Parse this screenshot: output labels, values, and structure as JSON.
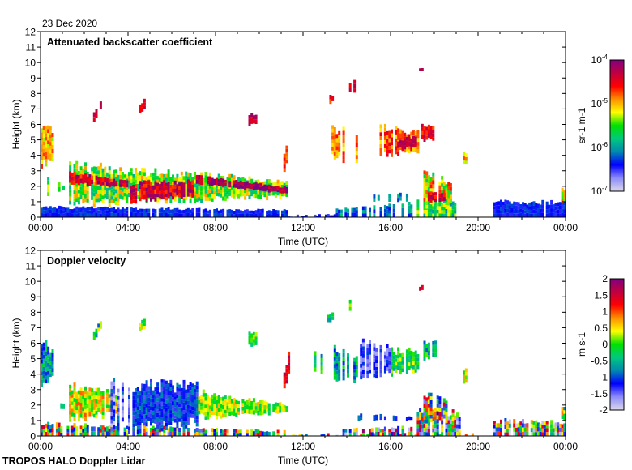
{
  "date_label": "23 Dec 2020",
  "footer": "TROPOS HALO Doppler Lidar",
  "colors": {
    "colormap": [
      "#dcd8ec",
      "#8c8cf8",
      "#0000ff",
      "#0088b0",
      "#00c880",
      "#00e000",
      "#ffff00",
      "#ff9000",
      "#ff0000",
      "#c00040",
      "#800080"
    ]
  },
  "chart_data": [
    {
      "type": "heatmap",
      "title": "Attenuated backscatter coefficient",
      "xlabel": "Time (UTC)",
      "ylabel": "Height (km)",
      "xlim": [
        0,
        24
      ],
      "ylim": [
        0,
        12
      ],
      "x_ticks": [
        0,
        4,
        8,
        12,
        16,
        20,
        24
      ],
      "x_tick_labels": [
        "00:00",
        "04:00",
        "08:00",
        "12:00",
        "16:00",
        "20:00",
        "00:00"
      ],
      "y_ticks": [
        0,
        1,
        2,
        3,
        4,
        5,
        6,
        7,
        8,
        9,
        10,
        11,
        12
      ],
      "y_tick_labels": [
        "0",
        "1",
        "2",
        "3",
        "4",
        "5",
        "6",
        "7",
        "8",
        "9",
        "10",
        "11",
        "12"
      ],
      "colorbar": {
        "scale": "log",
        "range": [
          -7,
          -4
        ],
        "unit_label": "sr-1 m-1",
        "unit_base": [
          "sr",
          "m"
        ],
        "unit_exp": [
          "-1",
          "-1"
        ],
        "tick_values": [
          -4,
          -5,
          -6,
          -7
        ],
        "tick_base": "10",
        "tick_exps": [
          "-4",
          "-5",
          "-6",
          "-7"
        ]
      },
      "features": [
        {
          "t": [
            0,
            11.3
          ],
          "b": [
            0,
            0
          ],
          "h": [
            0.65,
            0.45
          ],
          "v": -6.35,
          "s": 0.15,
          "fill": 0.95
        },
        {
          "t": [
            11.3,
            13.5
          ],
          "b": [
            0,
            0
          ],
          "h": [
            0.1,
            0.15
          ],
          "v": -6.4,
          "s": 0.2,
          "fill": 0.6
        },
        {
          "t": [
            13.5,
            17.2
          ],
          "b": [
            0,
            0
          ],
          "h": [
            0.5,
            0.9
          ],
          "v": -6.1,
          "s": 0.35,
          "fill": 0.7
        },
        {
          "t": [
            17.2,
            19.0
          ],
          "b": [
            0,
            0
          ],
          "h": [
            1.2,
            1.0
          ],
          "v": -5.6,
          "s": 0.5,
          "fill": 0.85
        },
        {
          "t": [
            20.7,
            24
          ],
          "b": [
            0,
            0
          ],
          "h": [
            1.0,
            0.95
          ],
          "v": -6.35,
          "s": 0.15,
          "fill": 0.95
        },
        {
          "t": [
            14.5,
            17.0
          ],
          "b": [
            1.0,
            1.0
          ],
          "h": [
            1.5,
            1.5
          ],
          "v": -6.0,
          "s": 0.3,
          "fill": 0.4
        },
        {
          "t": [
            0,
            0.6
          ],
          "b": [
            3.5,
            3.8
          ],
          "h": [
            6.0,
            5.5
          ],
          "v": -5.0,
          "s": 0.35,
          "fill": 0.9
        },
        {
          "t": [
            0.3,
            1.1
          ],
          "b": [
            1.5,
            1.8
          ],
          "h": [
            2.5,
            2.0
          ],
          "v": -5.5,
          "s": 0.4,
          "fill": 0.5
        },
        {
          "t": [
            1.3,
            11.3
          ],
          "b": [
            0.9,
            1.3
          ],
          "h": [
            3.3,
            2.3
          ],
          "v": -5.4,
          "s": 0.5,
          "fill": 0.95
        },
        {
          "t": [
            1.3,
            4.0
          ],
          "b": [
            2.2,
            1.9
          ],
          "h": [
            2.9,
            2.3
          ],
          "v": -4.4,
          "s": 0.4,
          "fill": 0.85
        },
        {
          "t": [
            4.0,
            7.0
          ],
          "b": [
            1.0,
            1.4
          ],
          "h": [
            2.2,
            2.3
          ],
          "v": -4.4,
          "s": 0.4,
          "fill": 0.9
        },
        {
          "t": [
            7.0,
            11.3
          ],
          "b": [
            2.2,
            1.5
          ],
          "h": [
            2.7,
            1.9
          ],
          "v": -4.2,
          "s": 0.3,
          "fill": 0.95
        },
        {
          "t": [
            17.5,
            18.8
          ],
          "b": [
            0.8,
            1.0
          ],
          "h": [
            2.8,
            2.2
          ],
          "v": -5.2,
          "s": 0.6,
          "fill": 0.8
        },
        {
          "t": [
            17.7,
            18.5
          ],
          "b": [
            1.0,
            1.0
          ],
          "h": [
            1.6,
            1.5
          ],
          "v": -4.4,
          "s": 0.3,
          "fill": 0.9
        },
        {
          "t": [
            13.3,
            14.6
          ],
          "b": [
            3.8,
            3.6
          ],
          "h": [
            5.8,
            5.2
          ],
          "v": -4.9,
          "s": 0.3,
          "fill": 0.55
        },
        {
          "t": [
            15.4,
            17.3
          ],
          "b": [
            4.0,
            4.3
          ],
          "h": [
            5.8,
            5.5
          ],
          "v": -4.8,
          "s": 0.35,
          "fill": 0.8
        },
        {
          "t": [
            16.3,
            17.2
          ],
          "b": [
            4.4,
            4.6
          ],
          "h": [
            5.0,
            5.2
          ],
          "v": -4.3,
          "s": 0.2,
          "fill": 0.95
        },
        {
          "t": [
            17.4,
            18.1
          ],
          "b": [
            5.0,
            5.0
          ],
          "h": [
            6.0,
            6.0
          ],
          "v": -4.5,
          "s": 0.3,
          "fill": 0.8
        },
        {
          "t": [
            11.1,
            11.4
          ],
          "b": [
            3.0,
            4.5
          ],
          "h": [
            4.0,
            6.0
          ],
          "v": -4.8,
          "s": 0.3,
          "fill": 0.8
        },
        {
          "t": [
            2.4,
            2.8
          ],
          "b": [
            6.2,
            7.2
          ],
          "h": [
            6.7,
            7.8
          ],
          "v": -4.4,
          "s": 0.2,
          "fill": 0.8
        },
        {
          "t": [
            4.5,
            4.8
          ],
          "b": [
            6.8,
            7.0
          ],
          "h": [
            7.3,
            7.7
          ],
          "v": -4.5,
          "s": 0.2,
          "fill": 0.7
        },
        {
          "t": [
            9.5,
            9.9
          ],
          "b": [
            6.0,
            6.0
          ],
          "h": [
            6.7,
            6.6
          ],
          "v": -4.3,
          "s": 0.2,
          "fill": 0.9
        },
        {
          "t": [
            13.1,
            13.4
          ],
          "b": [
            7.3,
            7.5
          ],
          "h": [
            7.8,
            8.0
          ],
          "v": -4.6,
          "s": 0.2,
          "fill": 0.6
        },
        {
          "t": [
            14.1,
            14.4
          ],
          "b": [
            8.0,
            8.2
          ],
          "h": [
            8.8,
            8.9
          ],
          "v": -4.4,
          "s": 0.2,
          "fill": 0.6
        },
        {
          "t": [
            17.3,
            17.5
          ],
          "b": [
            9.4,
            9.4
          ],
          "h": [
            9.7,
            9.7
          ],
          "v": -4.2,
          "s": 0.1,
          "fill": 1
        },
        {
          "t": [
            19.3,
            19.5
          ],
          "b": [
            3.4,
            3.5
          ],
          "h": [
            4.3,
            4.2
          ],
          "v": -5.0,
          "s": 0.3,
          "fill": 0.9
        },
        {
          "t": [
            23.8,
            24
          ],
          "b": [
            1.0,
            1.0
          ],
          "h": [
            1.8,
            1.8
          ],
          "v": -5.2,
          "s": 0.4,
          "fill": 0.8
        }
      ]
    },
    {
      "type": "heatmap",
      "title": "Doppler velocity",
      "xlabel": "Time (UTC)",
      "ylabel": "Height (km)",
      "xlim": [
        0,
        24
      ],
      "ylim": [
        0,
        12
      ],
      "x_ticks": [
        0,
        4,
        8,
        12,
        16,
        20,
        24
      ],
      "x_tick_labels": [
        "00:00",
        "04:00",
        "08:00",
        "12:00",
        "16:00",
        "20:00",
        "00:00"
      ],
      "y_ticks": [
        0,
        1,
        2,
        3,
        4,
        5,
        6,
        7,
        8,
        9,
        10,
        11,
        12
      ],
      "y_tick_labels": [
        "0",
        "1",
        "2",
        "3",
        "4",
        "5",
        "6",
        "7",
        "8",
        "9",
        "10",
        "11",
        "12"
      ],
      "colorbar": {
        "scale": "linear",
        "range": [
          -2,
          2
        ],
        "unit_label": "m s-1",
        "unit_base": [
          "m",
          "s"
        ],
        "unit_exp": [
          "",
          "-1"
        ],
        "tick_values": [
          2,
          1.5,
          1,
          0.5,
          0,
          -0.5,
          -1,
          -1.5,
          -2
        ],
        "tick_labels": [
          "2",
          "1.5",
          "1",
          "0.5",
          "0",
          "-0.5",
          "-1",
          "-1.5",
          "-2"
        ]
      },
      "features": [
        {
          "t": [
            0,
            11.3
          ],
          "b": [
            0,
            0
          ],
          "h": [
            0.8,
            0.3
          ],
          "v": 0.0,
          "s": 1.6,
          "fill": 0.8
        },
        {
          "t": [
            11.3,
            20
          ],
          "b": [
            0,
            0
          ],
          "h": [
            0.1,
            0.15
          ],
          "v": 0.0,
          "s": 2.0,
          "fill": 0.5
        },
        {
          "t": [
            13.5,
            17.2
          ],
          "b": [
            0,
            0
          ],
          "h": [
            0.4,
            0.6
          ],
          "v": 0.0,
          "s": 2.0,
          "fill": 0.6
        },
        {
          "t": [
            17.2,
            19.2
          ],
          "b": [
            0,
            0
          ],
          "h": [
            1.8,
            1.4
          ],
          "v": -0.2,
          "s": 2.0,
          "fill": 0.8
        },
        {
          "t": [
            20.7,
            24
          ],
          "b": [
            0,
            0
          ],
          "h": [
            1.0,
            0.9
          ],
          "v": -0.3,
          "s": 1.8,
          "fill": 0.85
        },
        {
          "t": [
            14.5,
            17.0
          ],
          "b": [
            1.0,
            1.0
          ],
          "h": [
            1.4,
            1.3
          ],
          "v": -1.1,
          "s": 0.3,
          "fill": 0.4
        },
        {
          "t": [
            0,
            0.6
          ],
          "b": [
            3.5,
            3.8
          ],
          "h": [
            6.0,
            5.5
          ],
          "v": -0.7,
          "s": 0.6,
          "fill": 0.9
        },
        {
          "t": [
            0.3,
            1.1
          ],
          "b": [
            1.5,
            1.8
          ],
          "h": [
            2.5,
            2.0
          ],
          "v": 0.0,
          "s": 0.6,
          "fill": 0.5
        },
        {
          "t": [
            1.3,
            3.5
          ],
          "b": [
            1.2,
            1.4
          ],
          "h": [
            3.2,
            2.8
          ],
          "v": 0.4,
          "s": 0.6,
          "fill": 0.9
        },
        {
          "t": [
            3.2,
            4.2
          ],
          "b": [
            0.5,
            0.5
          ],
          "h": [
            3.4,
            3.6
          ],
          "v": -1.4,
          "s": 0.6,
          "fill": 0.7
        },
        {
          "t": [
            4.2,
            7.2
          ],
          "b": [
            0.5,
            0.9
          ],
          "h": [
            3.3,
            3.2
          ],
          "v": -1.1,
          "s": 0.35,
          "fill": 0.95
        },
        {
          "t": [
            7.2,
            11.3
          ],
          "b": [
            1.2,
            1.5
          ],
          "h": [
            2.8,
            2.0
          ],
          "v": 0.2,
          "s": 0.5,
          "fill": 0.95
        },
        {
          "t": [
            17.5,
            18.8
          ],
          "b": [
            0.8,
            1.0
          ],
          "h": [
            2.8,
            2.2
          ],
          "v": 0.0,
          "s": 1.6,
          "fill": 0.8
        },
        {
          "t": [
            12.3,
            13.3
          ],
          "b": [
            4.0,
            4.2
          ],
          "h": [
            5.5,
            5.0
          ],
          "v": -0.3,
          "s": 0.6,
          "fill": 0.6
        },
        {
          "t": [
            13.3,
            14.6
          ],
          "b": [
            3.8,
            3.6
          ],
          "h": [
            5.8,
            5.2
          ],
          "v": -0.6,
          "s": 0.6,
          "fill": 0.55
        },
        {
          "t": [
            14.6,
            16.0
          ],
          "b": [
            3.8,
            4.0
          ],
          "h": [
            6.0,
            5.6
          ],
          "v": -1.4,
          "s": 0.4,
          "fill": 0.65
        },
        {
          "t": [
            16.0,
            17.3
          ],
          "b": [
            4.0,
            4.3
          ],
          "h": [
            5.5,
            5.5
          ],
          "v": -0.1,
          "s": 0.5,
          "fill": 0.8
        },
        {
          "t": [
            17.4,
            18.1
          ],
          "b": [
            5.0,
            5.0
          ],
          "h": [
            6.0,
            6.0
          ],
          "v": -0.4,
          "s": 0.6,
          "fill": 0.6
        },
        {
          "t": [
            11.1,
            11.4
          ],
          "b": [
            3.0,
            4.5
          ],
          "h": [
            4.0,
            6.0
          ],
          "v": 1.3,
          "s": 0.4,
          "fill": 0.8
        },
        {
          "t": [
            2.4,
            2.8
          ],
          "b": [
            6.2,
            7.2
          ],
          "h": [
            6.7,
            7.8
          ],
          "v": -0.3,
          "s": 0.8,
          "fill": 0.8
        },
        {
          "t": [
            4.5,
            4.8
          ],
          "b": [
            6.8,
            7.0
          ],
          "h": [
            7.3,
            7.7
          ],
          "v": 0.2,
          "s": 0.5,
          "fill": 0.7
        },
        {
          "t": [
            9.5,
            9.9
          ],
          "b": [
            5.8,
            6.0
          ],
          "h": [
            6.7,
            6.6
          ],
          "v": 0.2,
          "s": 0.6,
          "fill": 0.9
        },
        {
          "t": [
            13.1,
            13.4
          ],
          "b": [
            7.3,
            7.5
          ],
          "h": [
            7.8,
            8.0
          ],
          "v": -0.4,
          "s": 0.6,
          "fill": 0.6
        },
        {
          "t": [
            14.1,
            14.4
          ],
          "b": [
            8.0,
            8.2
          ],
          "h": [
            8.8,
            8.9
          ],
          "v": 0.3,
          "s": 0.6,
          "fill": 0.6
        },
        {
          "t": [
            17.3,
            17.5
          ],
          "b": [
            9.4,
            9.4
          ],
          "h": [
            9.7,
            9.7
          ],
          "v": 1.4,
          "s": 0.2,
          "fill": 1
        },
        {
          "t": [
            19.3,
            19.5
          ],
          "b": [
            3.4,
            3.5
          ],
          "h": [
            4.3,
            4.2
          ],
          "v": 0.3,
          "s": 0.5,
          "fill": 0.9
        },
        {
          "t": [
            23.8,
            24
          ],
          "b": [
            1.0,
            1.0
          ],
          "h": [
            1.8,
            1.8
          ],
          "v": 0.0,
          "s": 1.0,
          "fill": 0.8
        }
      ]
    }
  ]
}
